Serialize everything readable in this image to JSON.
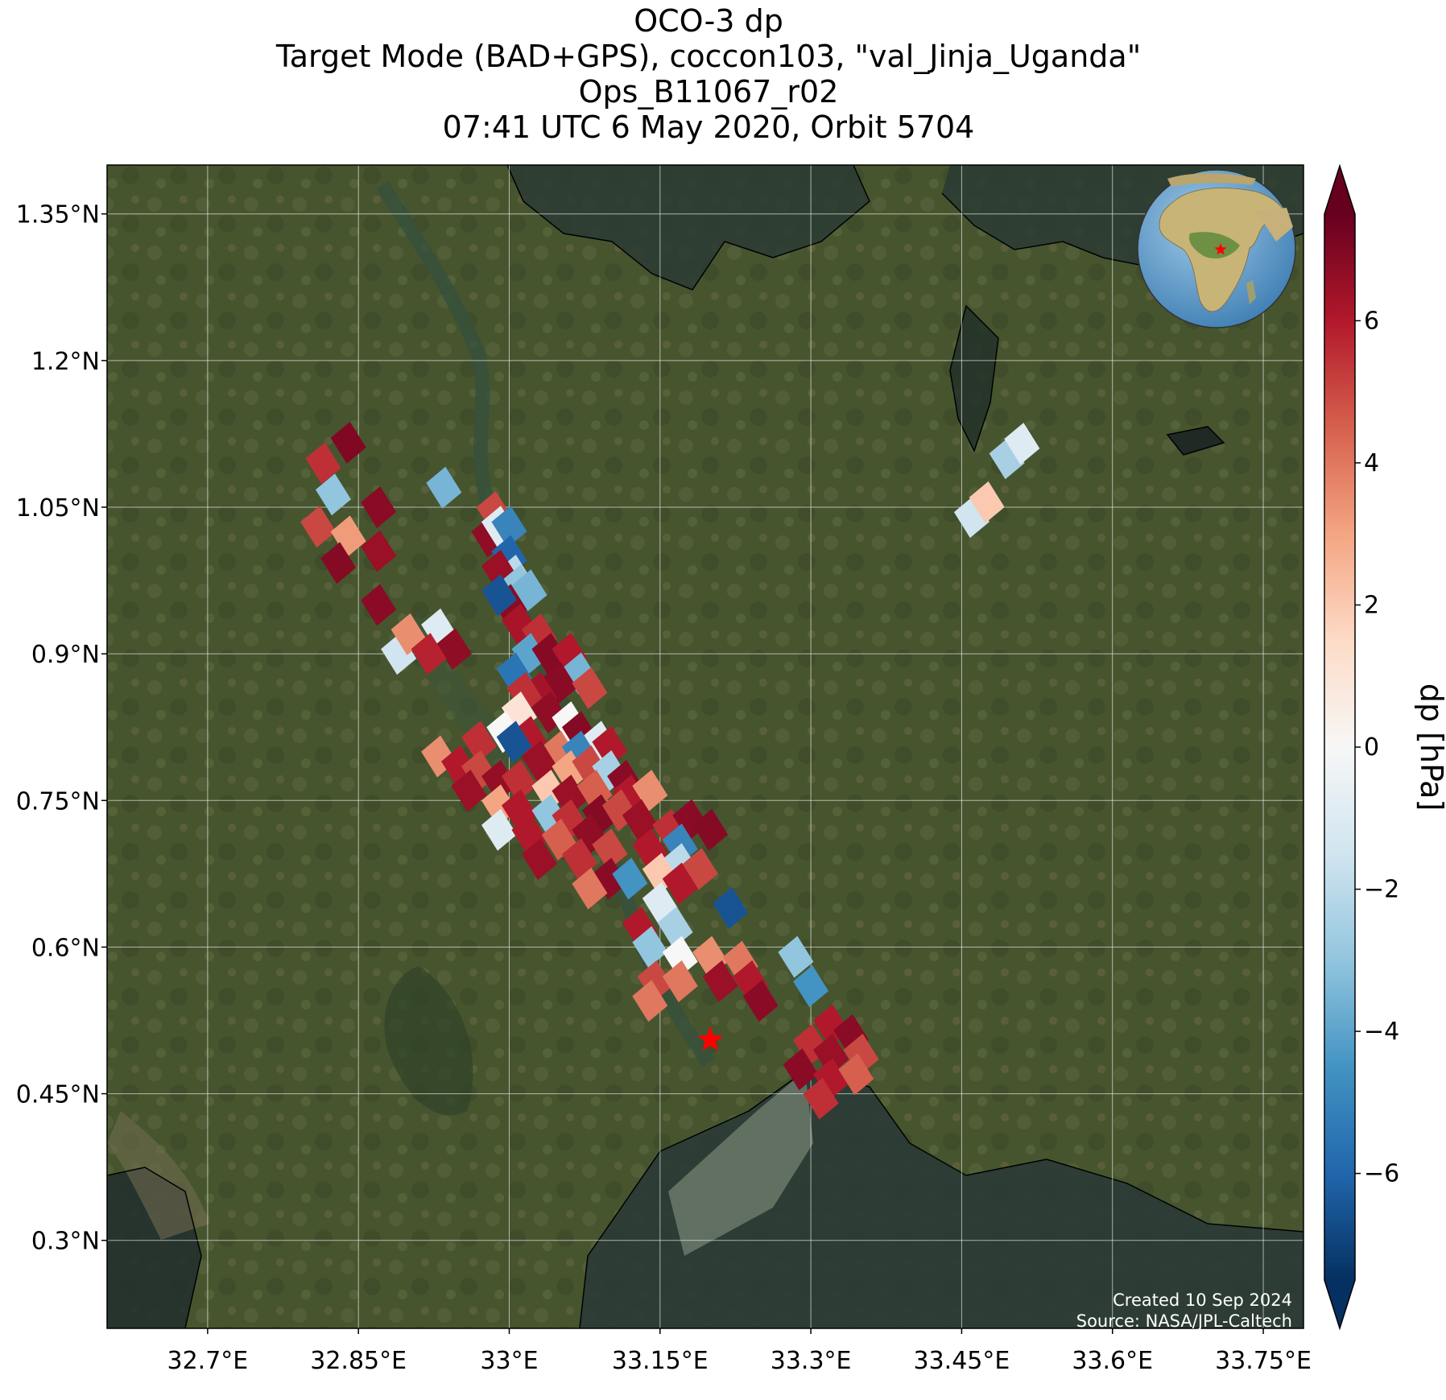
{
  "title": {
    "line1": "OCO-3 dp",
    "line2": "Target Mode (BAD+GPS), coccon103, \"val_Jinja_Uganda\"",
    "line3": "Ops_B11067_r02",
    "line4": "07:41 UTC 6 May 2020, Orbit 5704"
  },
  "map": {
    "lon_range": [
      32.6,
      33.79
    ],
    "lat_range": [
      0.21,
      1.4
    ],
    "lon_ticks": [
      32.7,
      32.85,
      33.0,
      33.15,
      33.3,
      33.45,
      33.6,
      33.75
    ],
    "lon_tick_labels": [
      "32.7°E",
      "32.85°E",
      "33°E",
      "33.15°E",
      "33.3°E",
      "33.45°E",
      "33.6°E",
      "33.75°E"
    ],
    "lat_ticks": [
      0.3,
      0.45,
      0.6,
      0.75,
      0.9,
      1.05,
      1.2,
      1.35
    ],
    "lat_tick_labels": [
      "0.3°N",
      "0.45°N",
      "0.6°N",
      "0.75°N",
      "0.9°N",
      "1.05°N",
      "1.2°N",
      "1.35°N"
    ],
    "grid": true,
    "target_marker": {
      "lon": 33.2,
      "lat": 0.505,
      "color": "#ff0000"
    },
    "inset_globe": {
      "position": "top-right",
      "marker_color": "#ff0000"
    },
    "credit_line1": "Created 10 Sep 2024",
    "credit_line2": "Source: NASA/JPL-Caltech"
  },
  "colorbar": {
    "label": "dp [hPa]",
    "range": [
      -7.5,
      7.5
    ],
    "ticks": [
      -6,
      -4,
      -2,
      0,
      2,
      4,
      6
    ],
    "tick_labels": [
      "−6",
      "−4",
      "−2",
      "0",
      "2",
      "4",
      "6"
    ],
    "colormap": [
      "#053061",
      "#2166ac",
      "#4393c3",
      "#92c5de",
      "#d1e5f0",
      "#f7f7f7",
      "#fddbc7",
      "#f4a582",
      "#d6604d",
      "#b2182b",
      "#67001f"
    ],
    "extend": "both"
  },
  "soundings": [
    {
      "lon": 32.84,
      "lat": 1.116,
      "dp": 7.0
    },
    {
      "lon": 32.815,
      "lat": 1.095,
      "dp": 5.5
    },
    {
      "lon": 32.825,
      "lat": 1.063,
      "dp": -3.0
    },
    {
      "lon": 32.87,
      "lat": 1.05,
      "dp": 6.8
    },
    {
      "lon": 32.81,
      "lat": 1.03,
      "dp": 5.0
    },
    {
      "lon": 32.84,
      "lat": 1.02,
      "dp": 3.2
    },
    {
      "lon": 32.87,
      "lat": 1.005,
      "dp": 6.5
    },
    {
      "lon": 32.83,
      "lat": 0.993,
      "dp": 6.9
    },
    {
      "lon": 32.87,
      "lat": 0.95,
      "dp": 6.8
    },
    {
      "lon": 32.89,
      "lat": 0.9,
      "dp": -1.5
    },
    {
      "lon": 32.9,
      "lat": 0.92,
      "dp": 3.5
    },
    {
      "lon": 32.93,
      "lat": 0.925,
      "dp": -1.0
    },
    {
      "lon": 32.945,
      "lat": 0.905,
      "dp": 6.7
    },
    {
      "lon": 32.92,
      "lat": 0.9,
      "dp": 5.8
    },
    {
      "lon": 32.935,
      "lat": 1.07,
      "dp": -3.5
    },
    {
      "lon": 32.985,
      "lat": 1.045,
      "dp": 5.0
    },
    {
      "lon": 32.98,
      "lat": 1.02,
      "dp": 6.7
    },
    {
      "lon": 32.99,
      "lat": 1.03,
      "dp": -1.0
    },
    {
      "lon": 33.0,
      "lat": 1.03,
      "dp": -5.0
    },
    {
      "lon": 33.0,
      "lat": 1.0,
      "dp": -6.0
    },
    {
      "lon": 33.005,
      "lat": 0.98,
      "dp": -2.0
    },
    {
      "lon": 32.99,
      "lat": 0.985,
      "dp": 6.5
    },
    {
      "lon": 33.01,
      "lat": 0.97,
      "dp": -3.0
    },
    {
      "lon": 33.02,
      "lat": 0.965,
      "dp": -3.5
    },
    {
      "lon": 33.0,
      "lat": 0.95,
      "dp": 6.8
    },
    {
      "lon": 32.99,
      "lat": 0.96,
      "dp": -6.5
    },
    {
      "lon": 33.01,
      "lat": 0.93,
      "dp": 6.2
    },
    {
      "lon": 33.03,
      "lat": 0.92,
      "dp": 5.5
    },
    {
      "lon": 33.02,
      "lat": 0.9,
      "dp": -4.0
    },
    {
      "lon": 33.005,
      "lat": 0.88,
      "dp": -5.5
    },
    {
      "lon": 33.04,
      "lat": 0.9,
      "dp": 6.9
    },
    {
      "lon": 33.06,
      "lat": 0.9,
      "dp": 6.0
    },
    {
      "lon": 33.07,
      "lat": 0.88,
      "dp": -3.5
    },
    {
      "lon": 33.05,
      "lat": 0.87,
      "dp": 6.8
    },
    {
      "lon": 33.08,
      "lat": 0.865,
      "dp": 5.0
    },
    {
      "lon": 33.03,
      "lat": 0.86,
      "dp": 6.3
    },
    {
      "lon": 33.015,
      "lat": 0.86,
      "dp": 5.5
    },
    {
      "lon": 33.01,
      "lat": 0.84,
      "dp": 1.0
    },
    {
      "lon": 33.04,
      "lat": 0.84,
      "dp": 6.7
    },
    {
      "lon": 33.06,
      "lat": 0.83,
      "dp": 0.0
    },
    {
      "lon": 33.07,
      "lat": 0.82,
      "dp": 6.9
    },
    {
      "lon": 33.09,
      "lat": 0.81,
      "dp": -1.0
    },
    {
      "lon": 33.1,
      "lat": 0.805,
      "dp": 6.0
    },
    {
      "lon": 33.02,
      "lat": 0.815,
      "dp": 6.0
    },
    {
      "lon": 32.995,
      "lat": 0.82,
      "dp": 0.0
    },
    {
      "lon": 32.97,
      "lat": 0.81,
      "dp": 5.5
    },
    {
      "lon": 33.005,
      "lat": 0.81,
      "dp": -6.5
    },
    {
      "lon": 33.05,
      "lat": 0.8,
      "dp": 4.0
    },
    {
      "lon": 33.07,
      "lat": 0.8,
      "dp": -5.0
    },
    {
      "lon": 33.03,
      "lat": 0.79,
      "dp": 6.5
    },
    {
      "lon": 33.06,
      "lat": 0.78,
      "dp": 3.0
    },
    {
      "lon": 33.08,
      "lat": 0.785,
      "dp": 5.0
    },
    {
      "lon": 33.1,
      "lat": 0.78,
      "dp": -2.5
    },
    {
      "lon": 33.115,
      "lat": 0.77,
      "dp": 6.8
    },
    {
      "lon": 32.93,
      "lat": 0.795,
      "dp": 3.5
    },
    {
      "lon": 32.95,
      "lat": 0.785,
      "dp": 6.0
    },
    {
      "lon": 32.97,
      "lat": 0.78,
      "dp": 5.0
    },
    {
      "lon": 32.99,
      "lat": 0.77,
      "dp": 6.6
    },
    {
      "lon": 33.01,
      "lat": 0.77,
      "dp": 5.5
    },
    {
      "lon": 33.04,
      "lat": 0.76,
      "dp": 2.0
    },
    {
      "lon": 33.06,
      "lat": 0.755,
      "dp": 6.5
    },
    {
      "lon": 33.085,
      "lat": 0.76,
      "dp": 4.5
    },
    {
      "lon": 33.12,
      "lat": 0.755,
      "dp": 6.0
    },
    {
      "lon": 33.14,
      "lat": 0.76,
      "dp": 3.5
    },
    {
      "lon": 32.96,
      "lat": 0.76,
      "dp": 6.5
    },
    {
      "lon": 32.99,
      "lat": 0.745,
      "dp": 3.0
    },
    {
      "lon": 33.01,
      "lat": 0.74,
      "dp": 6.0
    },
    {
      "lon": 33.04,
      "lat": 0.735,
      "dp": -3.0
    },
    {
      "lon": 33.06,
      "lat": 0.73,
      "dp": 5.5
    },
    {
      "lon": 33.09,
      "lat": 0.735,
      "dp": 6.9
    },
    {
      "lon": 33.11,
      "lat": 0.74,
      "dp": 5.0
    },
    {
      "lon": 33.13,
      "lat": 0.73,
      "dp": 6.5
    },
    {
      "lon": 33.16,
      "lat": 0.72,
      "dp": 5.5
    },
    {
      "lon": 33.18,
      "lat": 0.73,
      "dp": 6.8
    },
    {
      "lon": 33.2,
      "lat": 0.72,
      "dp": 6.9
    },
    {
      "lon": 33.17,
      "lat": 0.705,
      "dp": -5.0
    },
    {
      "lon": 32.99,
      "lat": 0.72,
      "dp": -1.0
    },
    {
      "lon": 33.02,
      "lat": 0.715,
      "dp": 6.0
    },
    {
      "lon": 33.05,
      "lat": 0.71,
      "dp": 4.5
    },
    {
      "lon": 33.08,
      "lat": 0.715,
      "dp": 6.7
    },
    {
      "lon": 33.1,
      "lat": 0.7,
      "dp": 5.0
    },
    {
      "lon": 33.14,
      "lat": 0.7,
      "dp": 6.0
    },
    {
      "lon": 33.17,
      "lat": 0.685,
      "dp": -2.0
    },
    {
      "lon": 33.19,
      "lat": 0.68,
      "dp": 5.0
    },
    {
      "lon": 33.03,
      "lat": 0.69,
      "dp": 6.5
    },
    {
      "lon": 33.07,
      "lat": 0.69,
      "dp": 5.5
    },
    {
      "lon": 33.1,
      "lat": 0.67,
      "dp": 6.8
    },
    {
      "lon": 33.12,
      "lat": 0.67,
      "dp": -4.5
    },
    {
      "lon": 33.15,
      "lat": 0.675,
      "dp": 2.0
    },
    {
      "lon": 33.17,
      "lat": 0.665,
      "dp": 6.0
    },
    {
      "lon": 33.15,
      "lat": 0.645,
      "dp": -1.0
    },
    {
      "lon": 33.08,
      "lat": 0.66,
      "dp": 4.0
    },
    {
      "lon": 33.22,
      "lat": 0.64,
      "dp": -6.5
    },
    {
      "lon": 33.13,
      "lat": 0.62,
      "dp": 6.0
    },
    {
      "lon": 33.14,
      "lat": 0.6,
      "dp": -3.0
    },
    {
      "lon": 33.165,
      "lat": 0.62,
      "dp": -2.5
    },
    {
      "lon": 33.17,
      "lat": 0.59,
      "dp": 0.0
    },
    {
      "lon": 33.2,
      "lat": 0.59,
      "dp": 3.5
    },
    {
      "lon": 33.23,
      "lat": 0.585,
      "dp": 4.0
    },
    {
      "lon": 33.285,
      "lat": 0.59,
      "dp": -3.0
    },
    {
      "lon": 33.3,
      "lat": 0.56,
      "dp": -4.5
    },
    {
      "lon": 33.145,
      "lat": 0.565,
      "dp": 5.0
    },
    {
      "lon": 33.17,
      "lat": 0.565,
      "dp": 4.0
    },
    {
      "lon": 33.21,
      "lat": 0.565,
      "dp": 6.5
    },
    {
      "lon": 33.24,
      "lat": 0.565,
      "dp": 6.0
    },
    {
      "lon": 33.25,
      "lat": 0.545,
      "dp": 6.8
    },
    {
      "lon": 33.14,
      "lat": 0.545,
      "dp": 4.0
    },
    {
      "lon": 33.32,
      "lat": 0.52,
      "dp": 6.0
    },
    {
      "lon": 33.34,
      "lat": 0.51,
      "dp": 6.8
    },
    {
      "lon": 33.3,
      "lat": 0.5,
      "dp": 5.5
    },
    {
      "lon": 33.32,
      "lat": 0.49,
      "dp": 6.5
    },
    {
      "lon": 33.35,
      "lat": 0.49,
      "dp": 5.0
    },
    {
      "lon": 33.29,
      "lat": 0.475,
      "dp": 6.8
    },
    {
      "lon": 33.32,
      "lat": 0.465,
      "dp": 6.0
    },
    {
      "lon": 33.345,
      "lat": 0.47,
      "dp": 4.5
    },
    {
      "lon": 33.31,
      "lat": 0.445,
      "dp": 5.5
    },
    {
      "lon": 33.46,
      "lat": 1.04,
      "dp": -1.5
    },
    {
      "lon": 33.475,
      "lat": 1.055,
      "dp": 2.0
    },
    {
      "lon": 33.495,
      "lat": 1.1,
      "dp": -2.5
    },
    {
      "lon": 33.51,
      "lat": 1.115,
      "dp": -1.0
    }
  ]
}
